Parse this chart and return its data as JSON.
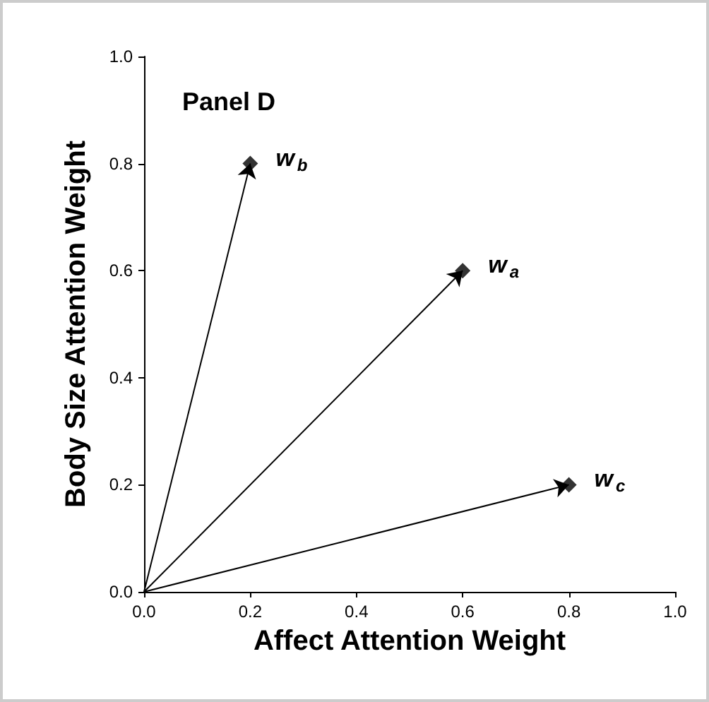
{
  "chart_data": {
    "type": "scatter",
    "title": "Panel D",
    "xlabel": "Affect Attention Weight",
    "ylabel": "Body Size Attention Weight",
    "x": [
      0.2,
      0.6,
      0.8
    ],
    "series": [
      {
        "color": "#000000",
        "values": [
          0.8,
          0.6,
          0.2
        ]
      }
    ],
    "xlim": [
      0,
      1
    ],
    "ylim": [
      0,
      1
    ],
    "xticks": [
      {
        "value": 0,
        "label": "0.0"
      },
      0.2,
      0.4,
      0.6,
      0.8,
      {
        "value": 1,
        "label": "1.0"
      }
    ],
    "yticks": [
      {
        "value": 0,
        "label": "0.0"
      },
      0.2,
      0.4,
      0.6,
      0.8,
      {
        "value": 1,
        "label": "1.0"
      }
    ],
    "grid": false,
    "marker": "diamond",
    "annotations": [
      {
        "text": "w$_{b}$",
        "x": 0.2,
        "y": 0.8
      },
      {
        "text": "w$_{a}$",
        "x": 0.6,
        "y": 0.6
      },
      {
        "text": "w$_{c}$",
        "x": 0.8,
        "y": 0.2
      }
    ]
  }
}
